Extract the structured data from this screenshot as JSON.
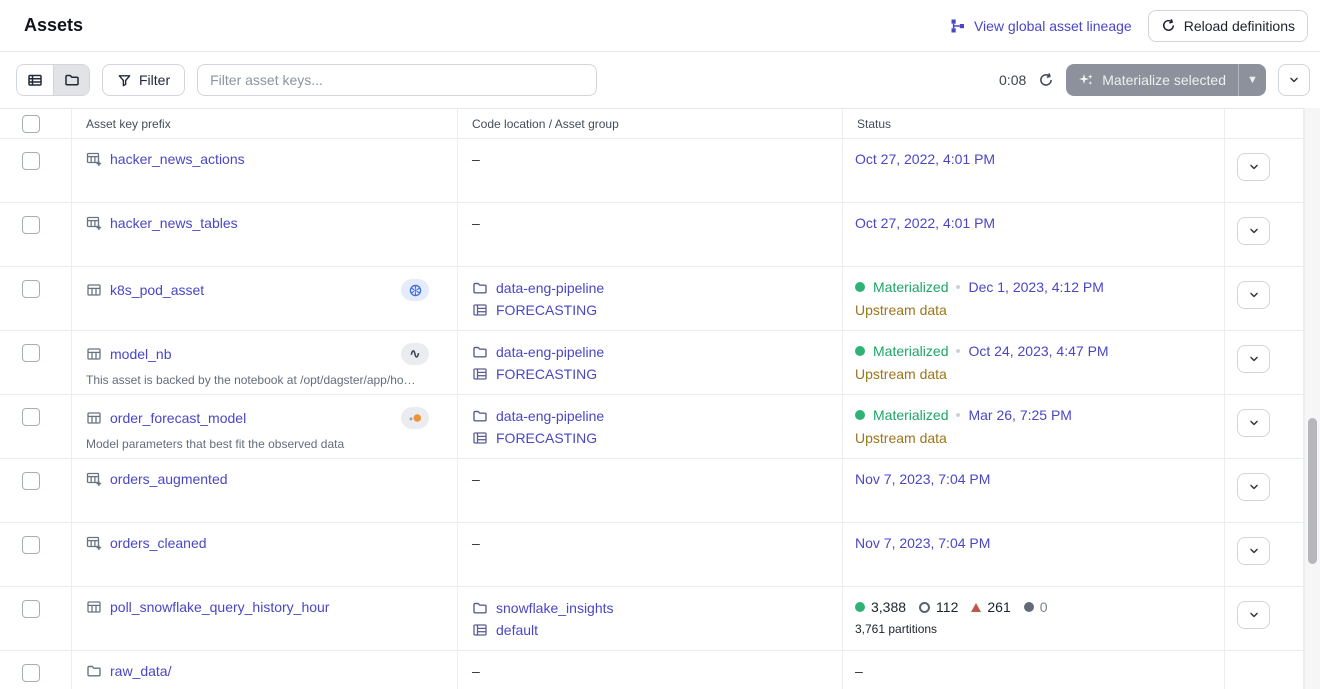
{
  "header": {
    "title": "Assets",
    "lineage_link": "View global asset lineage",
    "reload_button": "Reload definitions"
  },
  "toolbar": {
    "filter_button": "Filter",
    "search_placeholder": "Filter asset keys...",
    "timer": "0:08",
    "materialize_button": "Materialize selected"
  },
  "table": {
    "columns": [
      "Asset key prefix",
      "Code location / Asset group",
      "Status"
    ],
    "dash": "–",
    "rows": [
      {
        "name": "hacker_news_actions",
        "icon": "table-plus",
        "status": {
          "type": "date",
          "date": "Oct 27, 2022, 4:01 PM"
        }
      },
      {
        "name": "hacker_news_tables",
        "icon": "table-plus",
        "status": {
          "type": "date",
          "date": "Oct 27, 2022, 4:01 PM"
        }
      },
      {
        "name": "k8s_pod_asset",
        "icon": "table",
        "badge": "kubernetes",
        "code": {
          "location": "data-eng-pipeline",
          "group": "FORECASTING"
        },
        "status": {
          "type": "materialized",
          "label": "Materialized",
          "date": "Dec 1, 2023, 4:12 PM",
          "note": "Upstream data"
        }
      },
      {
        "name": "model_nb",
        "icon": "table",
        "badge": "noteable",
        "description": "This asset is backed by the notebook at /opt/dagster/app/ho…",
        "code": {
          "location": "data-eng-pipeline",
          "group": "FORECASTING"
        },
        "status": {
          "type": "materialized",
          "label": "Materialized",
          "date": "Oct 24, 2023, 4:47 PM",
          "note": "Upstream data"
        }
      },
      {
        "name": "order_forecast_model",
        "icon": "table",
        "badge": "jupyter",
        "description": "Model parameters that best fit the observed data",
        "code": {
          "location": "data-eng-pipeline",
          "group": "FORECASTING"
        },
        "status": {
          "type": "materialized",
          "label": "Materialized",
          "date": "Mar 26, 7:25 PM",
          "note": "Upstream data"
        }
      },
      {
        "name": "orders_augmented",
        "icon": "table-plus",
        "status": {
          "type": "date",
          "date": "Nov 7, 2023, 7:04 PM"
        }
      },
      {
        "name": "orders_cleaned",
        "icon": "table-plus",
        "status": {
          "type": "date",
          "date": "Nov 7, 2023, 7:04 PM"
        }
      },
      {
        "name": "poll_snowflake_query_history_hour",
        "icon": "table",
        "code": {
          "location": "snowflake_insights",
          "group": "default"
        },
        "status": {
          "type": "partitions",
          "counts": [
            {
              "kind": "materialized",
              "value": "3,388"
            },
            {
              "kind": "observed",
              "value": "112"
            },
            {
              "kind": "failed",
              "value": "261"
            },
            {
              "kind": "missing",
              "value": "0"
            }
          ],
          "caption": "3,761 partitions"
        }
      },
      {
        "name": "raw_data/",
        "icon": "folder",
        "has_menu": false,
        "status": {
          "type": "dash"
        }
      }
    ]
  },
  "colors": {
    "link": "#4a46c6",
    "materialized_green": "#1fa466",
    "upstream_yellow": "#9d7418",
    "failed_red": "#c0564a",
    "kubernetes_blue": "#3f6ee0",
    "jupyter_orange": "#ef9236"
  }
}
